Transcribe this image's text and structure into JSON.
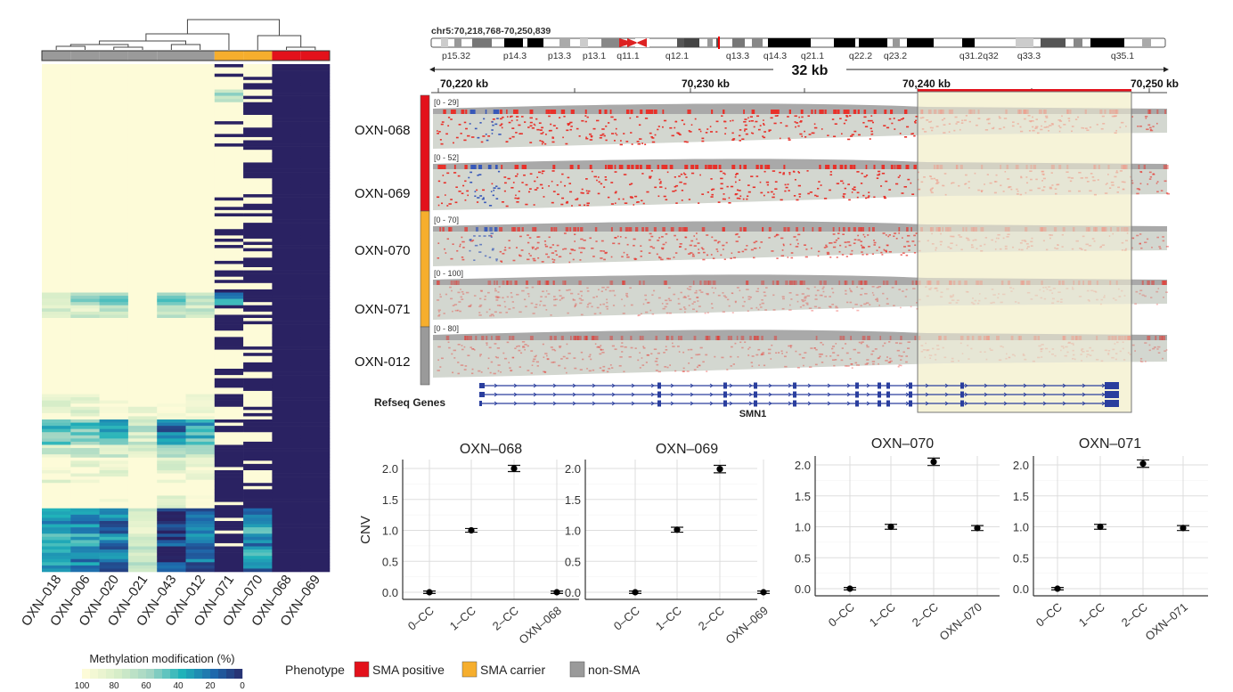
{
  "heatmap": {
    "columns": [
      "OXN–018",
      "OXN–006",
      "OXN–020",
      "OXN–021",
      "OXN–043",
      "OXN–012",
      "OXN–071",
      "OXN–070",
      "OXN–068",
      "OXN–069"
    ],
    "column_phenotype": [
      "non-SMA",
      "non-SMA",
      "non-SMA",
      "non-SMA",
      "non-SMA",
      "non-SMA",
      "SMA carrier",
      "SMA carrier",
      "SMA positive",
      "SMA positive"
    ],
    "legend_title": "Methylation modification (%)",
    "legend_ticks": [
      "100",
      "80",
      "60",
      "40",
      "20",
      "0"
    ]
  },
  "phenotype_legend": {
    "title": "Phenotype",
    "items": [
      {
        "label": "SMA positive",
        "color": "#e3111b"
      },
      {
        "label": "SMA carrier",
        "color": "#f6ae2d"
      },
      {
        "label": "non-SMA",
        "color": "#9a9a9a"
      }
    ]
  },
  "igv": {
    "locus": "chr5:70,218,768-70,250,839",
    "bands": [
      "p15.32",
      "p14.3",
      "p13.3",
      "p13.1",
      "q11.1",
      "q12.1",
      "q13.3",
      "q14.3",
      "q21.1",
      "q22.2",
      "q23.2",
      "q31.2",
      "q32",
      "q33.3",
      "q35.1"
    ],
    "span_label": "32 kb",
    "ruler_labels": [
      "70,220 kb",
      "70,230 kb",
      "70,240 kb",
      "70,250 kb"
    ],
    "tracks": [
      {
        "sample": "OXN-068",
        "range": "[0 - 29]",
        "phenotype": "SMA positive"
      },
      {
        "sample": "OXN-069",
        "range": "[0 - 52]",
        "phenotype": "SMA positive"
      },
      {
        "sample": "OXN-070",
        "range": "[0 - 70]",
        "phenotype": "SMA carrier"
      },
      {
        "sample": "OXN-071",
        "range": "[0 - 100]",
        "phenotype": "SMA carrier"
      },
      {
        "sample": "OXN-012",
        "range": "[0 - 80]",
        "phenotype": "non-SMA"
      }
    ],
    "genes_label": "Refseq Genes",
    "gene_name": "SMN1"
  },
  "chart_data": [
    {
      "type": "heatmap",
      "title": "",
      "xlabel": "",
      "columns": [
        "OXN–018",
        "OXN–006",
        "OXN–020",
        "OXN–021",
        "OXN–043",
        "OXN–012",
        "OXN–071",
        "OXN–070",
        "OXN–068",
        "OXN–069"
      ],
      "value_label": "Methylation modification (%)",
      "range": [
        0,
        100
      ],
      "rows": [
        [
          100,
          100,
          100,
          100,
          100,
          100,
          100,
          100,
          0,
          0
        ],
        [
          100,
          100,
          100,
          100,
          100,
          100,
          100,
          0,
          0,
          0
        ],
        [
          100,
          100,
          100,
          100,
          100,
          100,
          70,
          100,
          0,
          0
        ],
        [
          100,
          100,
          100,
          100,
          100,
          100,
          100,
          0,
          0,
          0
        ],
        [
          100,
          100,
          100,
          100,
          100,
          100,
          100,
          100,
          0,
          0
        ],
        [
          100,
          100,
          100,
          100,
          100,
          100,
          100,
          0,
          0,
          0
        ],
        [
          100,
          100,
          100,
          100,
          100,
          100,
          100,
          0,
          0,
          0
        ],
        [
          100,
          100,
          100,
          100,
          100,
          100,
          100,
          100,
          0,
          0
        ],
        [
          100,
          100,
          100,
          100,
          100,
          100,
          100,
          0,
          0,
          0
        ],
        [
          100,
          100,
          100,
          100,
          100,
          100,
          100,
          100,
          0,
          0
        ],
        [
          100,
          100,
          100,
          100,
          100,
          100,
          100,
          0,
          0,
          0
        ],
        [
          100,
          100,
          100,
          100,
          100,
          100,
          100,
          0,
          0,
          0
        ],
        [
          100,
          100,
          100,
          100,
          100,
          100,
          100,
          100,
          0,
          0
        ],
        [
          100,
          100,
          100,
          100,
          100,
          100,
          100,
          0,
          0,
          0
        ],
        [
          100,
          100,
          100,
          100,
          100,
          100,
          100,
          100,
          0,
          0
        ],
        [
          100,
          100,
          100,
          100,
          100,
          100,
          100,
          0,
          0,
          0
        ],
        [
          100,
          100,
          100,
          100,
          100,
          100,
          100,
          0,
          0,
          0
        ],
        [
          100,
          100,
          100,
          100,
          100,
          100,
          0,
          100,
          0,
          0
        ],
        [
          70,
          60,
          55,
          100,
          50,
          70,
          30,
          0,
          0,
          0
        ],
        [
          85,
          80,
          75,
          100,
          70,
          80,
          100,
          0,
          0,
          0
        ],
        [
          100,
          100,
          100,
          100,
          100,
          100,
          0,
          100,
          0,
          0
        ],
        [
          100,
          100,
          100,
          100,
          100,
          100,
          100,
          0,
          0,
          0
        ],
        [
          100,
          100,
          100,
          100,
          100,
          100,
          0,
          0,
          0,
          0
        ],
        [
          100,
          100,
          100,
          100,
          100,
          100,
          100,
          100,
          0,
          0
        ],
        [
          100,
          100,
          100,
          100,
          100,
          100,
          0,
          0,
          0,
          0
        ],
        [
          100,
          100,
          100,
          100,
          100,
          100,
          100,
          0,
          0,
          0
        ],
        [
          95,
          95,
          95,
          100,
          95,
          95,
          0,
          100,
          0,
          0
        ],
        [
          90,
          90,
          90,
          95,
          90,
          90,
          100,
          0,
          0,
          0
        ],
        [
          40,
          50,
          45,
          70,
          20,
          40,
          0,
          0,
          0,
          0
        ],
        [
          55,
          60,
          50,
          80,
          30,
          45,
          100,
          100,
          0,
          0
        ],
        [
          80,
          80,
          75,
          90,
          70,
          75,
          0,
          0,
          0,
          0
        ],
        [
          95,
          95,
          95,
          100,
          90,
          95,
          100,
          0,
          0,
          0
        ],
        [
          95,
          95,
          95,
          100,
          95,
          95,
          0,
          100,
          0,
          0
        ],
        [
          100,
          100,
          100,
          100,
          100,
          100,
          0,
          0,
          0,
          0
        ],
        [
          100,
          100,
          95,
          100,
          95,
          95,
          0,
          0,
          0,
          0
        ],
        [
          40,
          30,
          25,
          80,
          10,
          15,
          0,
          30,
          0,
          0
        ],
        [
          35,
          30,
          20,
          85,
          5,
          20,
          0,
          40,
          0,
          0
        ],
        [
          45,
          40,
          30,
          75,
          10,
          25,
          0,
          20,
          0,
          0
        ],
        [
          30,
          35,
          25,
          80,
          5,
          15,
          0,
          35,
          0,
          0
        ],
        [
          40,
          30,
          20,
          70,
          10,
          20,
          0,
          25,
          0,
          0
        ]
      ]
    },
    {
      "type": "scatter",
      "title": "OXN–068",
      "ylabel": "CNV",
      "xlabel": "",
      "categories": [
        "0–CC",
        "1–CC",
        "2–CC",
        "OXN–068"
      ],
      "values": [
        0.0,
        1.0,
        2.0,
        0.0
      ],
      "errors": [
        0.02,
        0.03,
        0.05,
        0.02
      ],
      "ylim": [
        0,
        2.0
      ],
      "yticks": [
        "0.0",
        "0.5",
        "1.0",
        "1.5",
        "2.0"
      ],
      "grid": true
    },
    {
      "type": "scatter",
      "title": "OXN–069",
      "ylabel": "",
      "xlabel": "",
      "categories": [
        "0–CC",
        "1–CC",
        "2–CC",
        "OXN–069"
      ],
      "values": [
        0.0,
        1.01,
        1.99,
        0.0
      ],
      "errors": [
        0.02,
        0.04,
        0.06,
        0.02
      ],
      "ylim": [
        0,
        2.0
      ],
      "yticks": [
        "0.0",
        "0.5",
        "1.0",
        "1.5",
        "2.0"
      ],
      "grid": true
    },
    {
      "type": "scatter",
      "title": "OXN–070",
      "ylabel": "",
      "xlabel": "",
      "categories": [
        "0–CC",
        "1–CC",
        "2–CC",
        "OXN–070"
      ],
      "values": [
        0.0,
        1.0,
        2.05,
        0.98
      ],
      "errors": [
        0.02,
        0.04,
        0.06,
        0.04
      ],
      "ylim": [
        0,
        2.0
      ],
      "yticks": [
        "0.0",
        "0.5",
        "1.0",
        "1.5",
        "2.0"
      ],
      "grid": true
    },
    {
      "type": "scatter",
      "title": "OXN–071",
      "ylabel": "",
      "xlabel": "",
      "categories": [
        "0–CC",
        "1–CC",
        "2–CC",
        "OXN–071"
      ],
      "values": [
        0.0,
        1.0,
        2.02,
        0.98
      ],
      "errors": [
        0.02,
        0.04,
        0.06,
        0.04
      ],
      "ylim": [
        0,
        2.0
      ],
      "yticks": [
        "0.0",
        "0.5",
        "1.0",
        "1.5",
        "2.0"
      ],
      "grid": true
    }
  ]
}
